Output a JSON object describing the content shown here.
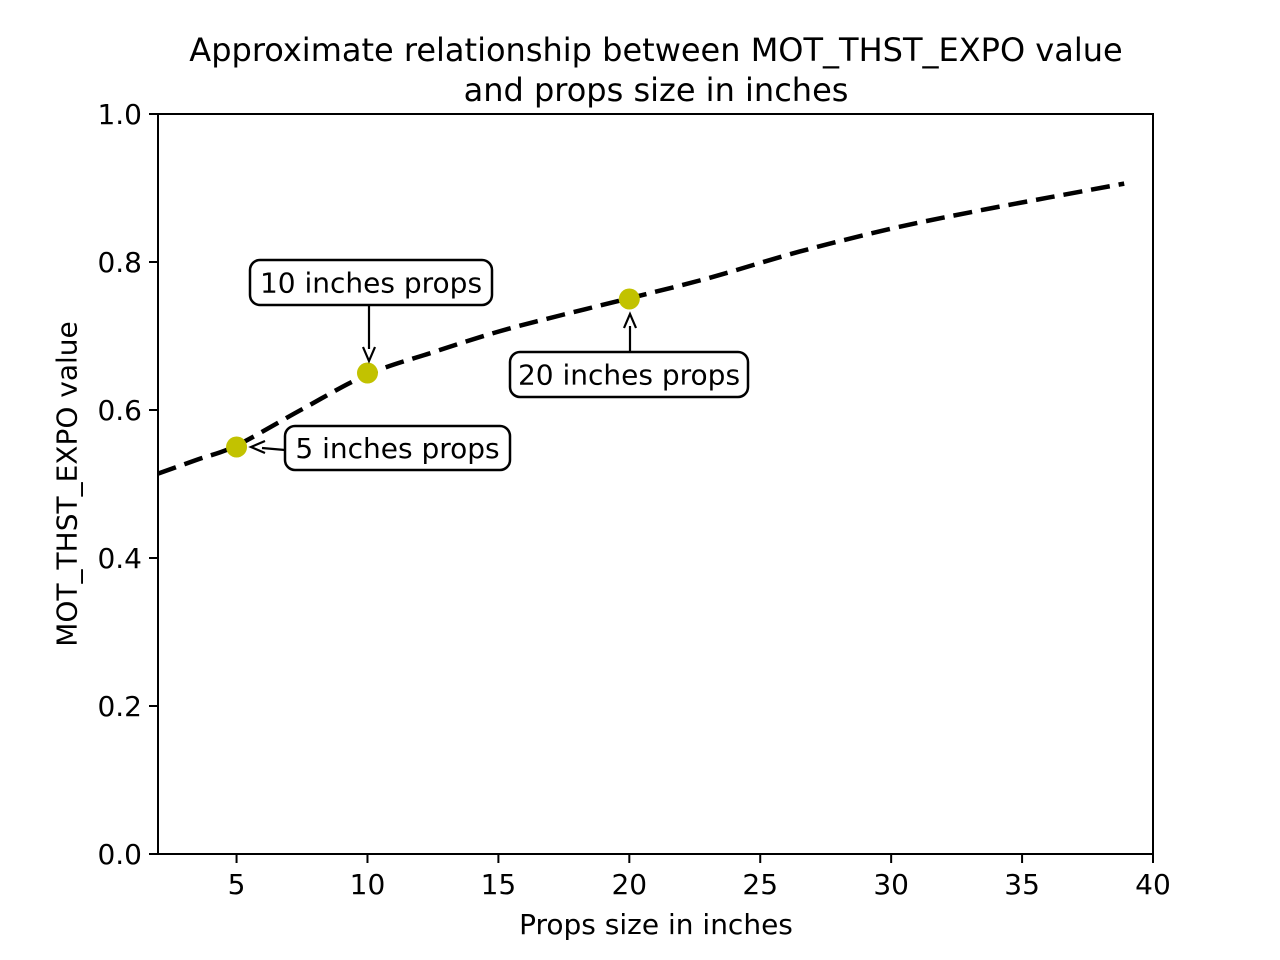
{
  "figure": {
    "title_line1": "Approximate relationship between MOT_THST_EXPO value",
    "title_line2": "and props size in inches",
    "xlabel": "Props size in inches",
    "ylabel": "MOT_THST_EXPO value"
  },
  "chart_data": {
    "type": "line",
    "title": "Approximate relationship between MOT_THST_EXPO value and props size in inches",
    "xlabel": "Props size in inches",
    "ylabel": "MOT_THST_EXPO value",
    "xlim": [
      2,
      40
    ],
    "ylim": [
      0.0,
      1.0
    ],
    "xticks": [
      5,
      10,
      15,
      20,
      25,
      30,
      35,
      40
    ],
    "yticks": [
      "0.0",
      "0.2",
      "0.4",
      "0.6",
      "0.8",
      "1.0"
    ],
    "grid": false,
    "legend": "none",
    "colors": {
      "curve": "#000000",
      "marker": "#c2c200",
      "box_border": "#000000",
      "box_fill": "#ffffff"
    },
    "series": [
      {
        "name": "approximate-curve",
        "style": "dashed-line",
        "color": "#000000",
        "points": [
          [
            2,
            0.514
          ],
          [
            3.5,
            0.533
          ],
          [
            5,
            0.552
          ],
          [
            7.5,
            0.601
          ],
          [
            10,
            0.648
          ],
          [
            12.5,
            0.678
          ],
          [
            15,
            0.706
          ],
          [
            17.5,
            0.729
          ],
          [
            20,
            0.751
          ],
          [
            23,
            0.778
          ],
          [
            26.5,
            0.814
          ],
          [
            30,
            0.845
          ],
          [
            33,
            0.867
          ],
          [
            36,
            0.887
          ],
          [
            38.9,
            0.906
          ]
        ]
      },
      {
        "name": "prop-size-samples",
        "style": "scatter",
        "color": "#c2c200",
        "points": [
          [
            5,
            0.55
          ],
          [
            10,
            0.65
          ],
          [
            20,
            0.75
          ]
        ]
      }
    ],
    "annotations": [
      {
        "label": "5 inches props",
        "target": [
          5,
          0.55
        ],
        "arrow_direction": "left"
      },
      {
        "label": "10 inches props",
        "target": [
          10,
          0.65
        ],
        "arrow_direction": "down"
      },
      {
        "label": "20 inches props",
        "target": [
          20,
          0.75
        ],
        "arrow_direction": "up"
      }
    ]
  }
}
